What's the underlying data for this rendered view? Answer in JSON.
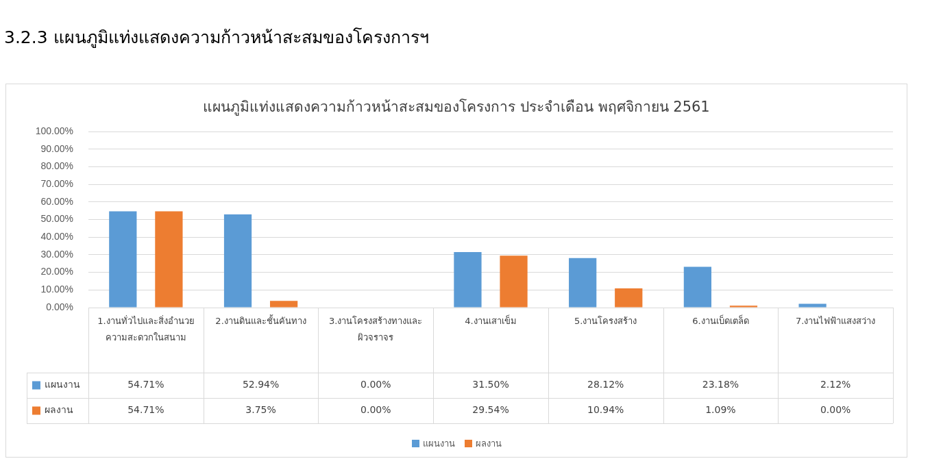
{
  "chart_data": {
    "type": "bar",
    "title": "แผนภูมิแท่งแสดงความก้าวหน้าสะสมของโครงการ ประจำเดือน พฤศจิกายน 2561",
    "annotations": [
      "3.2.3  แผนภูมิแท่งแสดงความก้าวหน้าสะสมของโครงการฯ"
    ],
    "categories": [
      "1.งานทั่วไปและสิ่งอำนวยความสะดวกในสนาม",
      "2.งานดินและชั้นคันทาง",
      "3.งานโครงสร้างทางและผิวจราจร",
      "4.งานเสาเข็ม",
      "5.งานโครงสร้าง",
      "6.งานเบ็ดเตล็ด",
      "7.งานไฟฟ้าแสงสว่าง"
    ],
    "series": [
      {
        "name": "แผนงาน",
        "color": "#5b9bd5",
        "values": [
          54.71,
          52.94,
          0,
          31.5,
          28.12,
          23.18,
          2.12
        ],
        "value_labels": [
          "54.71%",
          "52.94%",
          "0.00%",
          "31.50%",
          "28.12%",
          "23.18%",
          "2.12%"
        ]
      },
      {
        "name": "ผลงาน",
        "color": "#ed7d31",
        "values": [
          54.71,
          3.75,
          0,
          29.54,
          10.94,
          1.09,
          0
        ],
        "value_labels": [
          "54.71%",
          "3.75%",
          "0.00%",
          "29.54%",
          "10.94%",
          "1.09%",
          "0.00%"
        ]
      }
    ],
    "ylim": [
      0,
      100
    ],
    "yticks": [
      {
        "value": 0,
        "label": "0.00%"
      },
      {
        "value": 10,
        "label": "10.00%"
      },
      {
        "value": 20,
        "label": "20.00%"
      },
      {
        "value": 30,
        "label": "30.00%"
      },
      {
        "value": 40,
        "label": "40.00%"
      },
      {
        "value": 50,
        "label": "50.00%"
      },
      {
        "value": 60,
        "label": "60.00%"
      },
      {
        "value": 70,
        "label": "70.00%"
      },
      {
        "value": 80,
        "label": "80.00%"
      },
      {
        "value": 90,
        "label": "90.00%"
      },
      {
        "value": 100,
        "label": "100.00%"
      }
    ],
    "grid": "y",
    "legend": "bottom"
  }
}
